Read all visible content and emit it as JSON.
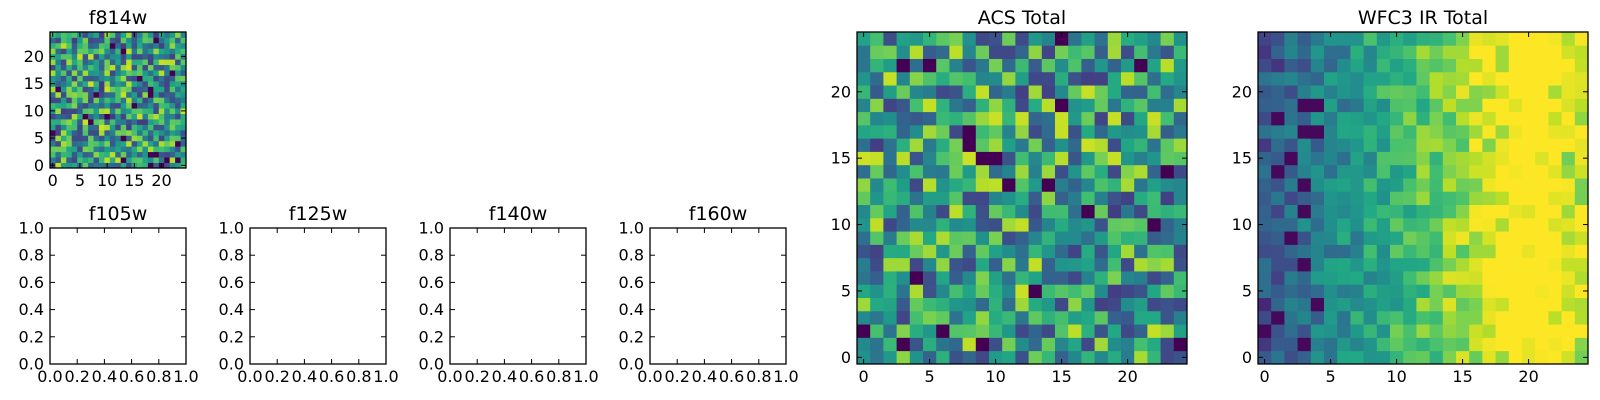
{
  "chart_data": [
    {
      "type": "heatmap",
      "title": "f814w",
      "grid_size": 25,
      "colormap": "viridis",
      "pattern": "noise",
      "seed": 7,
      "xticks": [
        0,
        5,
        10,
        15,
        20
      ],
      "yticks": [
        0,
        5,
        10,
        15,
        20
      ],
      "xlim": [
        -0.5,
        24.5
      ],
      "ylim": [
        -0.5,
        24.5
      ]
    },
    {
      "type": "empty",
      "title": "f105w",
      "xticks": [
        "0.0",
        "0.2",
        "0.4",
        "0.6",
        "0.8",
        "1.0"
      ],
      "yticks": [
        "0.0",
        "0.2",
        "0.4",
        "0.6",
        "0.8",
        "1.0"
      ],
      "xlim": [
        0,
        1
      ],
      "ylim": [
        0,
        1
      ]
    },
    {
      "type": "empty",
      "title": "f125w",
      "xticks": [
        "0.0",
        "0.2",
        "0.4",
        "0.6",
        "0.8",
        "1.0"
      ],
      "yticks": [
        "0.0",
        "0.2",
        "0.4",
        "0.6",
        "0.8",
        "1.0"
      ],
      "xlim": [
        0,
        1
      ],
      "ylim": [
        0,
        1
      ]
    },
    {
      "type": "empty",
      "title": "f140w",
      "xticks": [
        "0.0",
        "0.2",
        "0.4",
        "0.6",
        "0.8",
        "1.0"
      ],
      "yticks": [
        "0.0",
        "0.2",
        "0.4",
        "0.6",
        "0.8",
        "1.0"
      ],
      "xlim": [
        0,
        1
      ],
      "ylim": [
        0,
        1
      ]
    },
    {
      "type": "empty",
      "title": "f160w",
      "xticks": [
        "0.0",
        "0.2",
        "0.4",
        "0.6",
        "0.8",
        "1.0"
      ],
      "yticks": [
        "0.0",
        "0.2",
        "0.4",
        "0.6",
        "0.8",
        "1.0"
      ],
      "xlim": [
        0,
        1
      ],
      "ylim": [
        0,
        1
      ]
    },
    {
      "type": "heatmap",
      "title": "ACS Total",
      "grid_size": 25,
      "colormap": "viridis",
      "pattern": "noise",
      "seed": 21,
      "xticks": [
        0,
        5,
        10,
        15,
        20
      ],
      "yticks": [
        0,
        5,
        10,
        15,
        20
      ],
      "xlim": [
        -0.5,
        24.5
      ],
      "ylim": [
        -0.5,
        24.5
      ]
    },
    {
      "type": "heatmap",
      "title": "WFC3 IR Total",
      "grid_size": 25,
      "colormap": "viridis",
      "pattern": "gradient-x",
      "seed": 42,
      "xticks": [
        0,
        5,
        10,
        15,
        20
      ],
      "yticks": [
        0,
        5,
        10,
        15,
        20
      ],
      "xlim": [
        -0.5,
        24.5
      ],
      "ylim": [
        -0.5,
        24.5
      ]
    }
  ]
}
